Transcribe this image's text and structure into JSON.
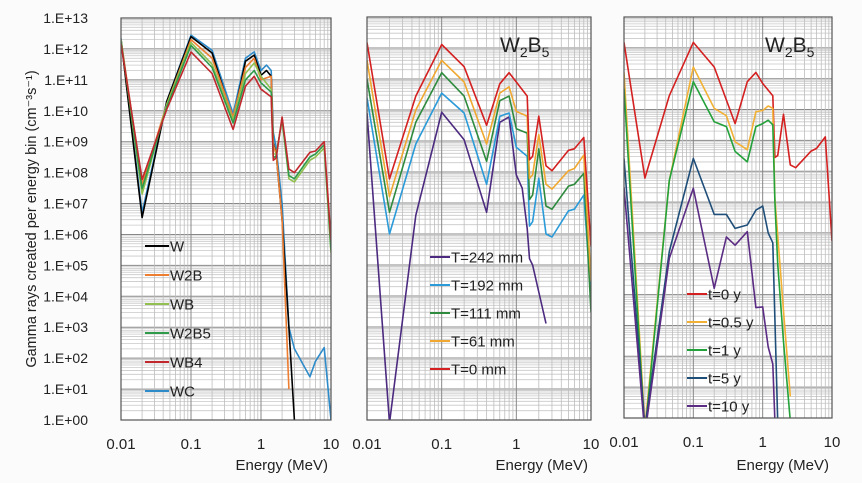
{
  "chart_data": [
    {
      "type": "line",
      "title": "",
      "xlabel": "Energy (MeV)",
      "ylabel": "Gamma rays created per energy bin (cm⁻³s⁻¹)",
      "xscale": "log",
      "yscale": "log",
      "xlim": [
        0.01,
        10
      ],
      "ylim": [
        1,
        10000000000000.0
      ],
      "grid": true,
      "legend": "bottom-left",
      "xticks": [
        "0.01",
        "0.1",
        "1",
        "10"
      ],
      "yticks": [
        "1.E+13",
        "1.E+12",
        "1.E+11",
        "1.E+10",
        "1.E+09",
        "1.E+08",
        "1.E+07",
        "1.E+06",
        "1.E+05",
        "1.E+04",
        "1.E+03",
        "1.E+02",
        "1.E+01",
        "1.E+00"
      ],
      "x": [
        0.01,
        0.02,
        0.045,
        0.1,
        0.2,
        0.3,
        0.4,
        0.6,
        0.8,
        1.0,
        1.2,
        1.4,
        1.5,
        1.65,
        2.0,
        2.5,
        3.0,
        5.0,
        6.0,
        8.0,
        10.0
      ],
      "series": [
        {
          "name": "WC",
          "color": "#2e8bc9",
          "values": [
            2200000000000.0,
            5000000.0,
            20000000000.0,
            2800000000000.0,
            900000000000.0,
            null,
            8000000000.0,
            500000000000.0,
            800000000000.0,
            200000000000.0,
            300000000000.0,
            200000000000.0,
            2000000000.0,
            630000000.0,
            10000000.0,
            1000.0,
            200.0,
            25,
            80,
            220,
            1
          ]
        },
        {
          "name": "W",
          "color": "#000000",
          "values": [
            2000000000000.0,
            3500000.0,
            20000000000.0,
            2500000000000.0,
            740000000000.0,
            null,
            5000000000.0,
            400000000000.0,
            630000000000.0,
            140000000000.0,
            200000000000.0,
            130000000000.0,
            900000000.0,
            400000000.0,
            3000000.0,
            1000.0,
            1,
            null,
            null,
            null,
            null
          ]
        },
        {
          "name": "W2B",
          "color": "#ed7d31",
          "values": [
            2000000000000.0,
            40000000.0,
            16000000000.0,
            2000000000000.0,
            500000000000.0,
            null,
            6300000000.0,
            250000000000.0,
            500000000000.0,
            100000000000.0,
            null,
            130000000000.0,
            800000000.0,
            400000000.0,
            3000000.0,
            10,
            null,
            null,
            null,
            null,
            null
          ]
        },
        {
          "name": "WB",
          "color": "#92c050",
          "values": [
            2000000000000.0,
            20000000.0,
            16000000000.0,
            1600000000000.0,
            320000000000.0,
            null,
            5000000000.0,
            160000000000.0,
            350000000000.0,
            130000000000.0,
            null,
            50000000000.0,
            400000000.0,
            400000000.0,
            5000000000.0,
            63000000.0,
            50000000.0,
            250000000.0,
            320000000.0,
            630000000.0,
            250000.0
          ]
        },
        {
          "name": "W2B5",
          "color": "#2e9a4a",
          "values": [
            1800000000000.0,
            30000000.0,
            13000000000.0,
            1300000000000.0,
            250000000000.0,
            null,
            4000000000.0,
            100000000000.0,
            200000000000.0,
            80000000000.0,
            null,
            40000000000.0,
            300000000.0,
            350000000.0,
            5600000000.0,
            80000000.0,
            63000000.0,
            320000000.0,
            400000000.0,
            800000000.0,
            320000.0
          ]
        },
        {
          "name": "WB4",
          "color": "#c0282d",
          "values": [
            1500000000000.0,
            60000000.0,
            11000000000.0,
            800000000000.0,
            160000000000.0,
            null,
            2500000000.0,
            63000000000.0,
            130000000000.0,
            50000000000.0,
            null,
            28000000000.0,
            250000000.0,
            300000000.0,
            6300000000.0,
            130000000.0,
            100000000.0,
            450000000.0,
            500000000.0,
            1000000000.0,
            630000.0
          ]
        }
      ],
      "legend_order": [
        "W",
        "W2B",
        "WB",
        "W2B5",
        "WB4",
        "WC"
      ]
    },
    {
      "type": "line",
      "title": "W2B5",
      "title_parts": {
        "a": "W",
        "s1": "2",
        "b": "B",
        "s2": "5"
      },
      "xlabel": "Energy (MeV)",
      "xscale": "log",
      "yscale": "log",
      "xlim": [
        0.01,
        10
      ],
      "ylim": [
        1,
        10000000000000.0
      ],
      "grid": true,
      "legend": "bottom-left",
      "xticks": [
        "0.01",
        "0.1",
        "1",
        "10"
      ],
      "x": [
        0.01,
        0.02,
        0.045,
        0.1,
        0.2,
        0.3,
        0.4,
        0.6,
        0.8,
        1.0,
        1.2,
        1.4,
        1.5,
        1.65,
        2.0,
        2.5,
        3.0,
        5.0,
        6.0,
        8.0,
        10.0
      ],
      "series": [
        {
          "name": "T=242 mm",
          "color": "#4b2a7f",
          "values": [
            8000000000.0,
            0.8,
            4000000.0,
            8500000000.0,
            1100000000.0,
            null,
            5000000.0,
            4000000000.0,
            6000000000.0,
            80000000.0,
            30000000.0,
            1500000.0,
            160000.0,
            100000.0,
            null,
            1300.0,
            null,
            null,
            null,
            null,
            null
          ]
        },
        {
          "name": "T=192 mm",
          "color": "#2a9ad8",
          "values": [
            25000000000.0,
            1000000.0,
            800000000.0,
            35000000000.0,
            8000000000.0,
            null,
            40000000.0,
            6300000000.0,
            8000000000.0,
            630000000.0,
            null,
            320000000.0,
            1800000.0,
            2500000.0,
            63000000.0,
            1000000.0,
            800000.0,
            5600000.0,
            6300000.0,
            18000000.0,
            10000.0
          ]
        },
        {
          "name": "T=111 mm",
          "color": "#2e8b3e",
          "values": [
            100000000000.0,
            5000000.0,
            4000000000.0,
            160000000000.0,
            28000000000.0,
            null,
            220000000.0,
            20000000000.0,
            28000000000.0,
            2500000000.0,
            null,
            1800000000.0,
            13000000.0,
            18000000.0,
            560000000.0,
            8000000.0,
            6300000.0,
            35000000.0,
            40000000.0,
            90000000.0,
            3000.0
          ]
        },
        {
          "name": "T=61 mm",
          "color": "#f0a830",
          "values": [
            400000000000.0,
            16000000.0,
            10000000000.0,
            400000000000.0,
            80000000000.0,
            null,
            800000000.0,
            35000000000.0,
            56000000000.0,
            9000000000.0,
            null,
            6300000000.0,
            63000000.0,
            80000000.0,
            1600000000.0,
            40000000.0,
            28000000.0,
            110000000.0,
            130000000.0,
            350000000.0,
            30000.0
          ]
        },
        {
          "name": "T=0 mm",
          "color": "#d42020",
          "values": [
            1500000000000.0,
            60000000.0,
            28000000000.0,
            1300000000000.0,
            250000000000.0,
            null,
            3200000000.0,
            70000000000.0,
            160000000000.0,
            80000000000.0,
            null,
            28000000000.0,
            250000000.0,
            320000000.0,
            6300000000.0,
            160000000.0,
            110000000.0,
            500000000.0,
            560000000.0,
            1300000000.0,
            400000.0
          ]
        }
      ]
    },
    {
      "type": "line",
      "title": "W2B5",
      "title_parts": {
        "a": "W",
        "s1": "2",
        "b": "B",
        "s2": "5"
      },
      "xlabel": "Energy (MeV)",
      "xscale": "log",
      "yscale": "log",
      "xlim": [
        0.01,
        10
      ],
      "ylim": [
        1,
        10000000000000.0
      ],
      "grid": true,
      "legend": "bottom-center",
      "xticks": [
        "0.01",
        "0.1",
        "1",
        "10"
      ],
      "x": [
        0.01,
        0.02,
        0.045,
        0.1,
        0.2,
        0.3,
        0.4,
        0.6,
        0.8,
        1.0,
        1.2,
        1.4,
        1.5,
        1.65,
        2.0,
        2.5,
        3.0,
        5.0,
        6.0,
        8.0,
        10.0
      ],
      "series": [
        {
          "name": "t=0 y",
          "color": "#d42020",
          "values": [
            1500000000000.0,
            60000000.0,
            28000000000.0,
            1500000000000.0,
            240000000000.0,
            null,
            3500000000.0,
            80000000000.0,
            160000000000.0,
            70000000000.0,
            null,
            28000000000.0,
            280000000.0,
            320000000.0,
            7000000000.0,
            160000000.0,
            130000000.0,
            450000000.0,
            550000000.0,
            1300000000.0,
            550000.0
          ]
        },
        {
          "name": "t=0.5 y",
          "color": "#f2b134",
          "values": [
            160000000000.0,
            0.5,
            50000000.0,
            240000000000.0,
            11000000000.0,
            6300000000.0,
            900000000.0,
            500000000.0,
            8500000000.0,
            9300000000.0,
            13000000000.0,
            11000000000.0,
            13000000.0,
            null,
            3000.0,
            5,
            null,
            null,
            null,
            null,
            null
          ]
        },
        {
          "name": "t=1 y",
          "color": "#23a13a",
          "values": [
            48000000000.0,
            0.3,
            50000000.0,
            80000000000.0,
            4000000000.0,
            2800000000.0,
            440000000.0,
            200000000.0,
            2800000000.0,
            3500000000.0,
            4500000000.0,
            3200000000.0,
            10000000.0,
            100000.0,
            300.0,
            0.8,
            null,
            null,
            null,
            null,
            null
          ]
        },
        {
          "name": "t=5 y",
          "color": "#1f4e79",
          "values": [
            260000000.0,
            0.5,
            250000.0,
            260000000.0,
            4000000.0,
            4000000.0,
            1400000.0,
            1800000.0,
            5500000.0,
            7400000.0,
            1000000.0,
            480000.0,
            null,
            0.8,
            null,
            null,
            null,
            null,
            null,
            null,
            null
          ]
        },
        {
          "name": "t=10 y",
          "color": "#5b2c83",
          "values": [
            30000000.0,
            0.3,
            150000.0,
            28000000.0,
            16000.0,
            740000.0,
            400000.0,
            1100000.0,
            3800.0,
            4000.0,
            200.0,
            56,
            0.8,
            null,
            null,
            null,
            null,
            null,
            null,
            null,
            null
          ]
        }
      ]
    }
  ]
}
